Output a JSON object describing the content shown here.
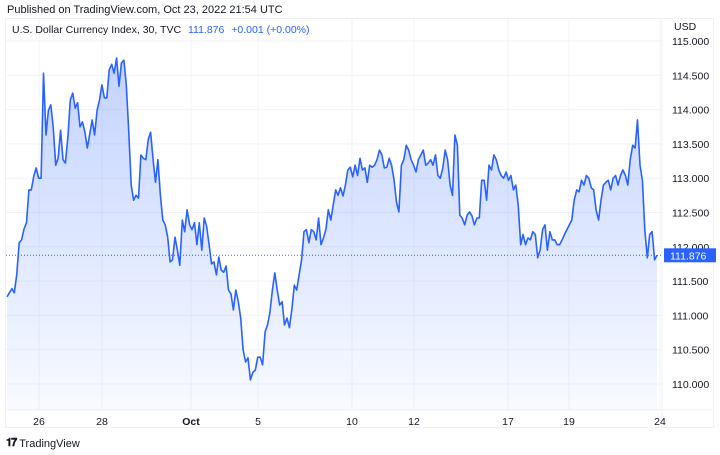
{
  "header": {
    "published": "Published on TradingView.com, Oct 23, 2022 21:54 UTC"
  },
  "legend": {
    "symbol": "U.S. Dollar Currency Index, 30, TVC",
    "last": "111.876",
    "change": "+0.001 (+0.00%)"
  },
  "footer": {
    "brand": "TradingView",
    "logo_text": "TV"
  },
  "colors": {
    "line": "#2962ff",
    "grid": "#f0f3fa",
    "text": "#131722"
  },
  "chart_data": {
    "type": "area",
    "currency": "USD",
    "ylim": [
      109.6,
      115.2
    ],
    "grid": true,
    "y_ticks": [
      "115.000",
      "114.500",
      "114.000",
      "113.500",
      "113.000",
      "112.500",
      "112.000",
      "111.500",
      "111.000",
      "110.500",
      "110.000"
    ],
    "x_ticks": [
      "26",
      "28",
      "Oct",
      "5",
      "10",
      "12",
      "17",
      "19",
      "24"
    ],
    "last_price_label": "111.876",
    "last_price": 111.876,
    "values": [
      111.27,
      111.33,
      111.39,
      111.33,
      111.59,
      112.06,
      112.1,
      112.26,
      112.35,
      112.83,
      112.83,
      113.03,
      113.15,
      113.0,
      113.0,
      114.53,
      113.63,
      113.99,
      114.07,
      113.73,
      113.19,
      113.29,
      113.7,
      113.27,
      113.22,
      113.6,
      114.14,
      114.24,
      114.02,
      114.1,
      113.75,
      113.82,
      113.67,
      113.44,
      113.65,
      113.85,
      113.63,
      113.99,
      114.14,
      114.36,
      114.17,
      114.17,
      114.58,
      114.66,
      114.53,
      114.75,
      114.34,
      114.68,
      114.72,
      114.36,
      113.7,
      112.9,
      112.68,
      112.75,
      112.71,
      113.34,
      113.29,
      113.27,
      113.56,
      113.67,
      113.27,
      112.94,
      113.27,
      112.75,
      112.39,
      112.32,
      112.14,
      111.78,
      111.81,
      112.14,
      111.95,
      111.73,
      112.39,
      112.22,
      112.54,
      112.32,
      112.25,
      112.35,
      112.03,
      112.35,
      111.95,
      112.42,
      112.3,
      112.03,
      111.75,
      111.78,
      111.59,
      111.85,
      111.66,
      111.63,
      111.72,
      111.37,
      111.31,
      111.08,
      111.37,
      111.2,
      110.96,
      110.5,
      110.32,
      110.38,
      110.06,
      110.17,
      110.2,
      110.39,
      110.39,
      110.28,
      110.76,
      110.86,
      111.04,
      111.37,
      111.62,
      111.37,
      111.15,
      111.2,
      110.86,
      110.96,
      110.82,
      111.08,
      111.44,
      111.37,
      111.59,
      111.81,
      112.22,
      112.25,
      112.06,
      112.25,
      112.22,
      112.1,
      112.42,
      112.03,
      112.13,
      112.25,
      112.54,
      112.39,
      112.61,
      112.83,
      112.75,
      112.86,
      112.74,
      112.9,
      113.12,
      113.16,
      113.02,
      113.19,
      113.04,
      113.29,
      113.12,
      113.15,
      112.94,
      113.19,
      113.16,
      113.19,
      113.27,
      113.41,
      113.34,
      113.15,
      113.16,
      113.29,
      113.19,
      112.97,
      112.65,
      112.51,
      113.19,
      113.27,
      113.48,
      113.41,
      113.27,
      113.19,
      113.09,
      113.27,
      113.34,
      113.41,
      113.19,
      113.22,
      113.27,
      113.19,
      113.34,
      113.04,
      113.0,
      113.15,
      113.41,
      113.27,
      112.9,
      112.75,
      113.63,
      113.48,
      112.46,
      112.42,
      112.32,
      112.46,
      112.51,
      112.45,
      112.32,
      112.42,
      112.42,
      112.97,
      112.97,
      112.68,
      113.19,
      113.12,
      113.34,
      113.27,
      113.12,
      113.04,
      113.0,
      113.09,
      112.97,
      113.04,
      112.83,
      112.9,
      112.61,
      112.03,
      112.18,
      112.03,
      112.13,
      112.1,
      112.22,
      112.18,
      111.84,
      111.95,
      112.25,
      112.32,
      111.95,
      112.22,
      112.1,
      112.1,
      112.03,
      112.03,
      112.1,
      112.18,
      112.25,
      112.32,
      112.39,
      112.68,
      112.83,
      112.8,
      112.97,
      112.9,
      113.04,
      113.0,
      112.86,
      112.83,
      112.54,
      112.39,
      112.68,
      112.9,
      112.94,
      112.97,
      112.83,
      113.0,
      113.04,
      112.9,
      113.04,
      113.12,
      113.04,
      112.9,
      113.27,
      113.48,
      113.44,
      113.85,
      113.19,
      112.97,
      112.25,
      111.84,
      112.18,
      112.22,
      111.81,
      111.876
    ]
  }
}
